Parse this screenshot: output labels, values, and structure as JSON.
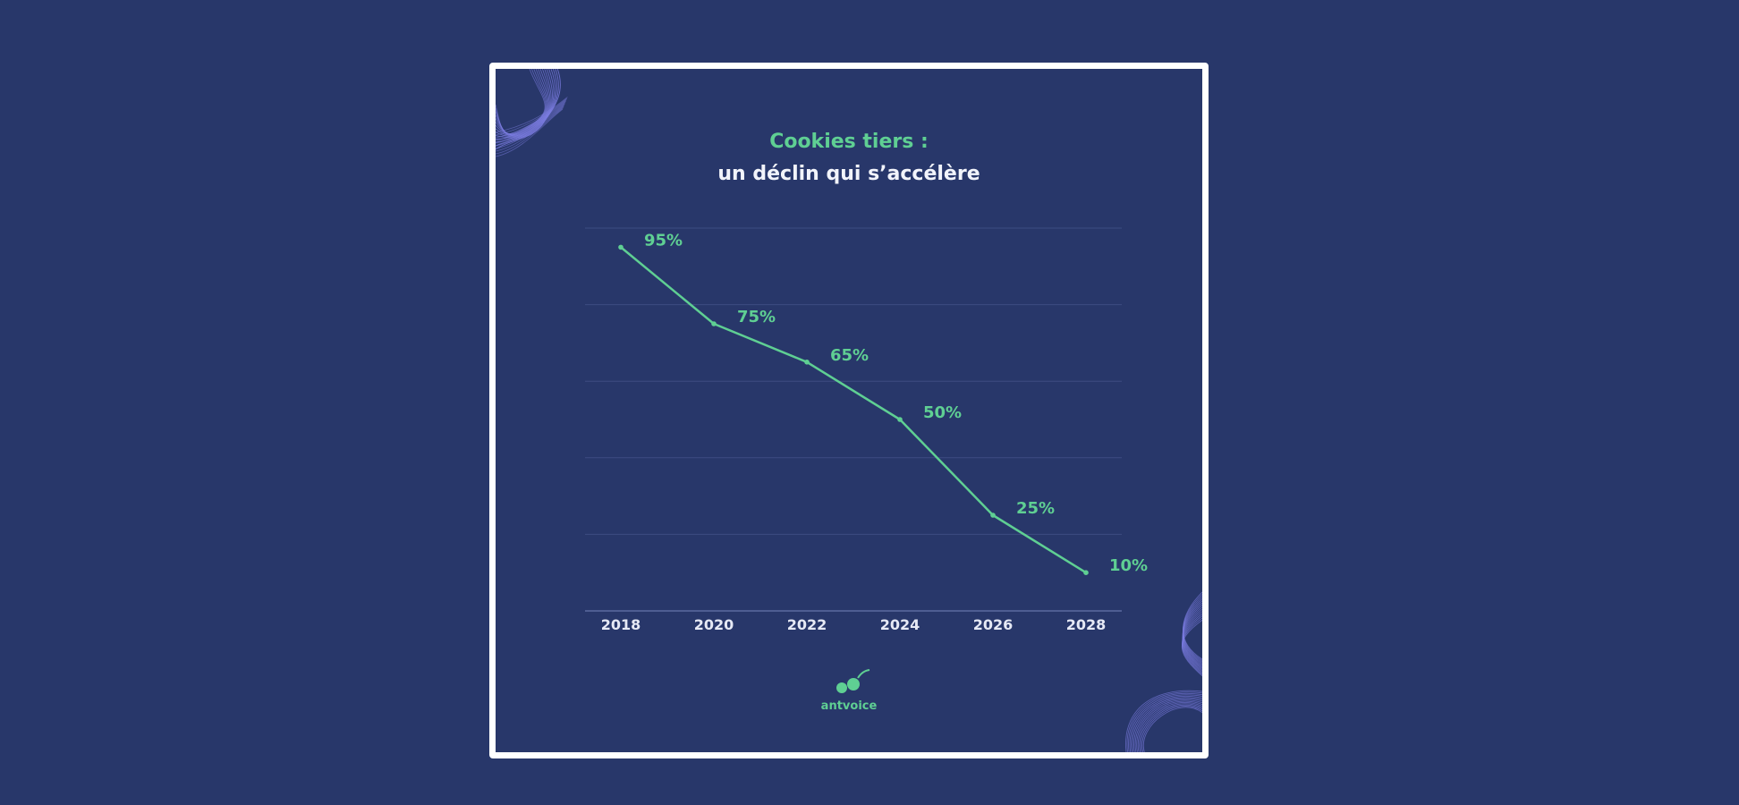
{
  "colors": {
    "background": "#28376a",
    "card_border": "#ffffff",
    "accent_green": "#5fcf93",
    "title_white": "#f2f4fb",
    "gridline": "#3d4c82",
    "axis_line": "#5a6aa0",
    "wave_purple": "#7f7fe6"
  },
  "chart_data": {
    "type": "line",
    "title": "Cookies tiers :",
    "subtitle": "un déclin qui s’accélère",
    "xlabel": "",
    "ylabel": "",
    "x": [
      "2018",
      "2020",
      "2022",
      "2024",
      "2026",
      "2028"
    ],
    "series": [
      {
        "values": [
          95,
          75,
          65,
          50,
          25,
          10
        ],
        "labels": [
          "95%",
          "75%",
          "65%",
          "50%",
          "25%",
          "10%"
        ]
      }
    ],
    "ylim": [
      0,
      100
    ],
    "grid": true,
    "legend": "none"
  },
  "branding": {
    "logo_icon": "ant-logo-icon",
    "logo_text": "antvoice"
  }
}
